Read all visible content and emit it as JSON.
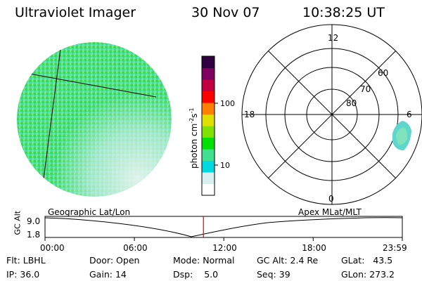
{
  "header": {
    "instrument": "Ultraviolet Imager",
    "date": "30 Nov 07",
    "time": "10:38:25 UT"
  },
  "colorbar": {
    "label": "photon cm",
    "label_exp1": "-2",
    "label_mid": "s",
    "label_exp2": "-1",
    "ticks": [
      {
        "label": "100",
        "value": 100
      },
      {
        "label": "10",
        "value": 10
      }
    ],
    "colors": [
      "#ffffff",
      "#d8f0f0",
      "#00d8e0",
      "#40e090",
      "#00e000",
      "#80e000",
      "#e0e000",
      "#ff8000",
      "#ff0000",
      "#c00040",
      "#800060",
      "#300040"
    ]
  },
  "polar": {
    "hour_labels": [
      "12",
      "18",
      "6",
      "0"
    ],
    "lat_labels": [
      "60",
      "70",
      "80"
    ]
  },
  "timeline": {
    "y_axis_label": "GC Alt",
    "y_max": "9.0",
    "y_min": "1.8",
    "left_title": "Geographic Lat/Lon",
    "right_title": "Apex MLat/MLT",
    "time_ticks": [
      "00:00",
      "06:00",
      "12:00",
      "18:00",
      "23:59"
    ],
    "marker_time": "10:38"
  },
  "footer": {
    "flt_label": "Flt:",
    "flt_value": "LBHL",
    "ip_label": "IP:",
    "ip_value": "36.0",
    "door_label": "Door:",
    "door_value": "Open",
    "gain_label": "Gain:",
    "gain_value": "14",
    "mode_label": "Mode:",
    "mode_value": "Normal",
    "dsp_label": "Dsp:",
    "dsp_value": "5.0",
    "gcalt_label": "GC Alt:",
    "gcalt_value": "2.4 Re",
    "seq_label": "Seq:",
    "seq_value": "39",
    "glat_label": "GLat:",
    "glat_value": "43.5",
    "glon_label": "GLon:",
    "glon_value": "273.2"
  }
}
